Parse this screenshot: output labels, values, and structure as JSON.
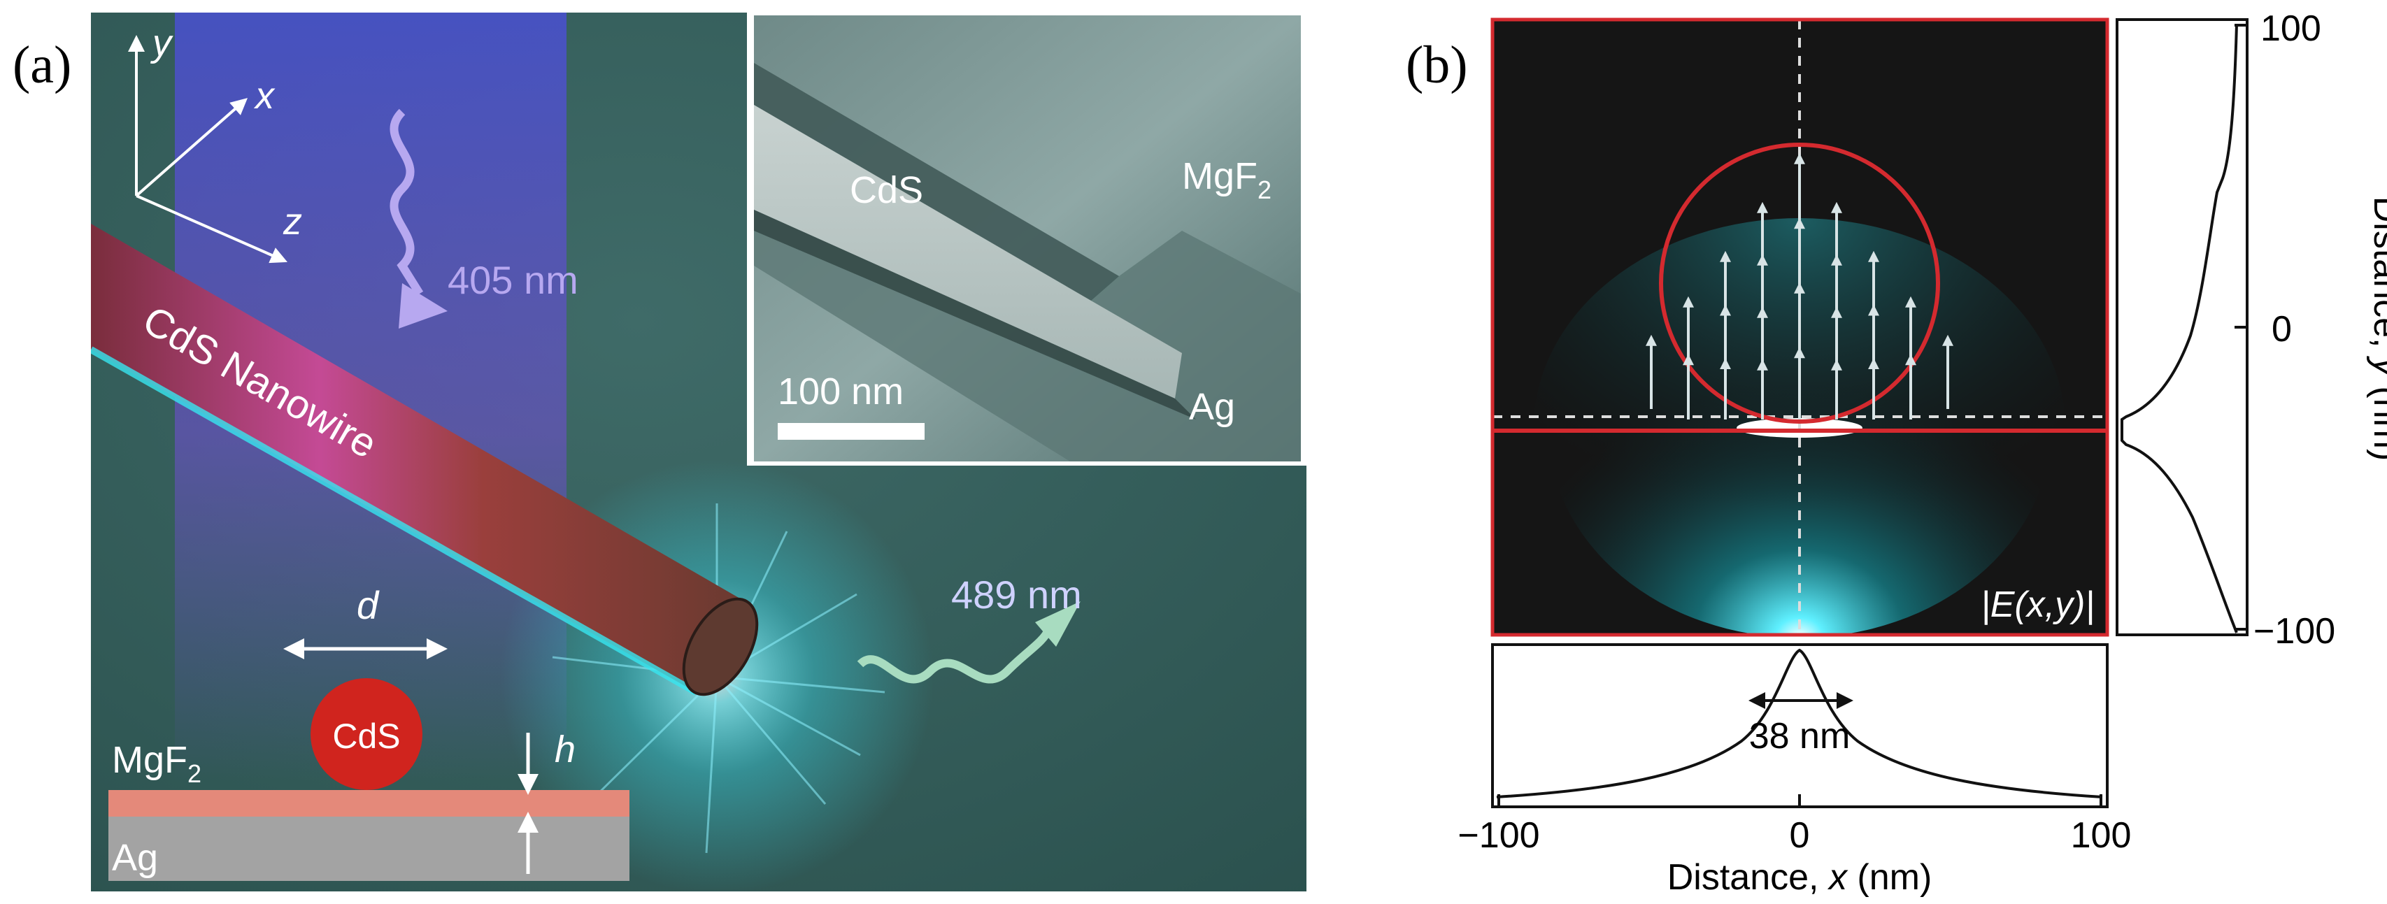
{
  "panel_a": {
    "label": "(a)",
    "axes": {
      "y": "y",
      "x": "x",
      "z": "z"
    },
    "excitation": "405 nm",
    "emission": "489 nm",
    "nanowire_label": "CdS Nanowire",
    "inset": {
      "cds": "CdS",
      "mgf2": "MgF",
      "mgf2_sub": "2",
      "ag": "Ag",
      "scale_bar": "100 nm"
    },
    "cross_section": {
      "d": "d",
      "h": "h",
      "particle": "CdS",
      "mgf2": "MgF",
      "mgf2_sub": "2",
      "ag": "Ag"
    }
  },
  "panel_b": {
    "label": "(b)",
    "field_label": "|E(x,y)|",
    "fwhm_label": "38 nm",
    "right_axis": {
      "label_prefix": "Distance, ",
      "label_var": "y",
      "label_suffix": " (nm)",
      "ticks": [
        "100",
        "0",
        "−100"
      ]
    },
    "bottom_axis": {
      "label_prefix": "Distance, ",
      "label_var": "x",
      "label_suffix": " (nm)",
      "ticks": [
        "−100",
        "0",
        "100"
      ]
    }
  },
  "colors": {
    "panel_a_bg": "#2f5a56",
    "nanowire": "#9c3b3a",
    "glow": "#38e6f0",
    "particle": "#d0241e",
    "mgf2_layer": "#e4897a",
    "ag_layer": "#a3a3a3",
    "field_bg": "#151515",
    "red_line": "#d42a2f"
  }
}
